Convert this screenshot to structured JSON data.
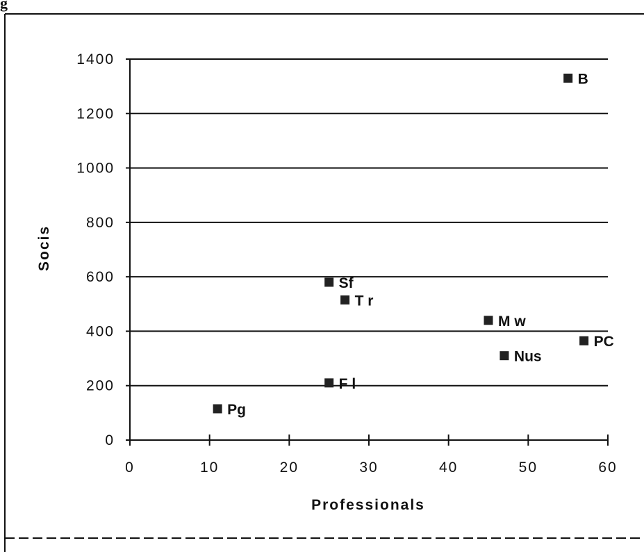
{
  "corner_text": "g",
  "chart_data": {
    "type": "scatter",
    "xlabel": "Professionals",
    "ylabel": "Socis",
    "xlim": [
      0,
      60
    ],
    "ylim": [
      0,
      1400
    ],
    "x_ticks": [
      0,
      10,
      20,
      30,
      40,
      50,
      60
    ],
    "y_ticks": [
      0,
      200,
      400,
      600,
      800,
      1000,
      1200,
      1400
    ],
    "grid": "horizontal",
    "marker_color": "#222222",
    "points": [
      {
        "label": "B",
        "x": 55,
        "y": 1330
      },
      {
        "label": "Sf",
        "x": 25,
        "y": 580
      },
      {
        "label": "T r",
        "x": 27,
        "y": 515
      },
      {
        "label": "M w",
        "x": 45,
        "y": 440
      },
      {
        "label": "PC",
        "x": 57,
        "y": 365
      },
      {
        "label": "Nus",
        "x": 47,
        "y": 310
      },
      {
        "label": "F l",
        "x": 25,
        "y": 210
      },
      {
        "label": "Pg",
        "x": 11,
        "y": 115
      }
    ]
  }
}
